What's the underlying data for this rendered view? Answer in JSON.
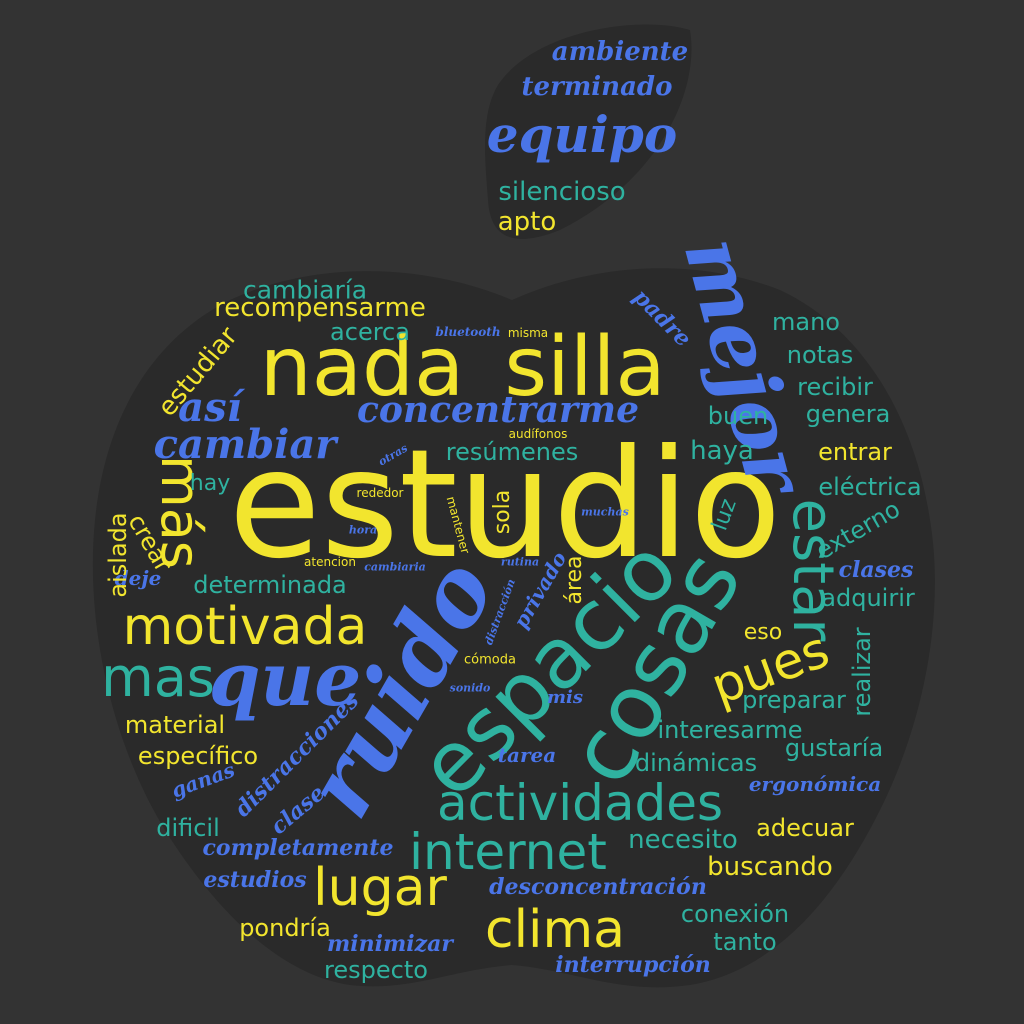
{
  "colors": {
    "background": "#333333",
    "apple_shape": "#2a2a2a",
    "yellow": "#f2e52e",
    "teal": "#2fb2a0",
    "blue": "#4a75e8"
  },
  "words": [
    {
      "text": "estudio",
      "color": "yellow"
    },
    {
      "text": "nada",
      "color": "yellow"
    },
    {
      "text": "silla",
      "color": "yellow"
    },
    {
      "text": "mejor",
      "color": "blue"
    },
    {
      "text": "ruido",
      "color": "blue"
    },
    {
      "text": "espacio",
      "color": "teal"
    },
    {
      "text": "cosas",
      "color": "teal"
    },
    {
      "text": "que",
      "color": "blue"
    },
    {
      "text": "estar",
      "color": "teal"
    },
    {
      "text": "actividades",
      "color": "teal"
    },
    {
      "text": "motivada",
      "color": "yellow"
    },
    {
      "text": "internet",
      "color": "teal"
    },
    {
      "text": "lugar",
      "color": "yellow"
    },
    {
      "text": "clima",
      "color": "yellow"
    },
    {
      "text": "mas",
      "color": "teal"
    },
    {
      "text": "pues",
      "color": "yellow"
    },
    {
      "text": "más",
      "color": "yellow"
    },
    {
      "text": "concentrarme",
      "color": "blue"
    },
    {
      "text": "cambiar",
      "color": "blue"
    },
    {
      "text": "así",
      "color": "blue"
    },
    {
      "text": "equipo",
      "color": "blue"
    },
    {
      "text": "terminado",
      "color": "blue"
    },
    {
      "text": "ambiente",
      "color": "blue"
    },
    {
      "text": "silencioso",
      "color": "teal"
    },
    {
      "text": "apto",
      "color": "yellow"
    },
    {
      "text": "cambiaría",
      "color": "teal"
    },
    {
      "text": "recompensarme",
      "color": "yellow"
    },
    {
      "text": "acerca",
      "color": "teal"
    },
    {
      "text": "estudiar",
      "color": "yellow"
    },
    {
      "text": "bluetooth",
      "color": "blue"
    },
    {
      "text": "misma",
      "color": "yellow"
    },
    {
      "text": "padre",
      "color": "blue"
    },
    {
      "text": "mano",
      "color": "teal"
    },
    {
      "text": "notas",
      "color": "teal"
    },
    {
      "text": "recibir",
      "color": "teal"
    },
    {
      "text": "genera",
      "color": "teal"
    },
    {
      "text": "buen",
      "color": "teal"
    },
    {
      "text": "haya",
      "color": "teal"
    },
    {
      "text": "entrar",
      "color": "yellow"
    },
    {
      "text": "eléctrica",
      "color": "teal"
    },
    {
      "text": "externo",
      "color": "teal"
    },
    {
      "text": "clases",
      "color": "blue"
    },
    {
      "text": "adquirir",
      "color": "teal"
    },
    {
      "text": "eso",
      "color": "yellow"
    },
    {
      "text": "realizar",
      "color": "teal"
    },
    {
      "text": "preparar",
      "color": "teal"
    },
    {
      "text": "interesarme",
      "color": "teal"
    },
    {
      "text": "gustaría",
      "color": "teal"
    },
    {
      "text": "dinámicas",
      "color": "teal"
    },
    {
      "text": "ergonómica",
      "color": "blue"
    },
    {
      "text": "adecuar",
      "color": "yellow"
    },
    {
      "text": "necesito",
      "color": "teal"
    },
    {
      "text": "buscando",
      "color": "yellow"
    },
    {
      "text": "conexión",
      "color": "teal"
    },
    {
      "text": "tanto",
      "color": "teal"
    },
    {
      "text": "interrupción",
      "color": "blue"
    },
    {
      "text": "desconcentración",
      "color": "blue"
    },
    {
      "text": "minimizar",
      "color": "blue"
    },
    {
      "text": "respecto",
      "color": "teal"
    },
    {
      "text": "pondría",
      "color": "yellow"
    },
    {
      "text": "estudios",
      "color": "blue"
    },
    {
      "text": "completamente",
      "color": "blue"
    },
    {
      "text": "dificil",
      "color": "teal"
    },
    {
      "text": "clase",
      "color": "blue"
    },
    {
      "text": "distracciones",
      "color": "blue"
    },
    {
      "text": "ganas",
      "color": "blue"
    },
    {
      "text": "específico",
      "color": "yellow"
    },
    {
      "text": "material",
      "color": "yellow"
    },
    {
      "text": "determinada",
      "color": "teal"
    },
    {
      "text": "deje",
      "color": "blue"
    },
    {
      "text": "aislada",
      "color": "yellow"
    },
    {
      "text": "crear",
      "color": "yellow"
    },
    {
      "text": "hay",
      "color": "teal"
    },
    {
      "text": "resúmenes",
      "color": "teal"
    },
    {
      "text": "audífonos",
      "color": "yellow"
    },
    {
      "text": "otras",
      "color": "blue"
    },
    {
      "text": "rededor",
      "color": "yellow"
    },
    {
      "text": "hora",
      "color": "blue"
    },
    {
      "text": "atencion",
      "color": "yellow"
    },
    {
      "text": "cambiaria",
      "color": "blue"
    },
    {
      "text": "mantener",
      "color": "yellow"
    },
    {
      "text": "sola",
      "color": "yellow"
    },
    {
      "text": "muchas",
      "color": "blue"
    },
    {
      "text": "rutina",
      "color": "blue"
    },
    {
      "text": "distracción",
      "color": "blue"
    },
    {
      "text": "privado",
      "color": "blue"
    },
    {
      "text": "área",
      "color": "yellow"
    },
    {
      "text": "luz",
      "color": "teal"
    },
    {
      "text": "cómoda",
      "color": "yellow"
    },
    {
      "text": "sonido",
      "color": "blue"
    },
    {
      "text": "mis",
      "color": "blue"
    },
    {
      "text": "tarea",
      "color": "blue"
    },
    {
      "text": "distracción",
      "color": "blue"
    }
  ]
}
